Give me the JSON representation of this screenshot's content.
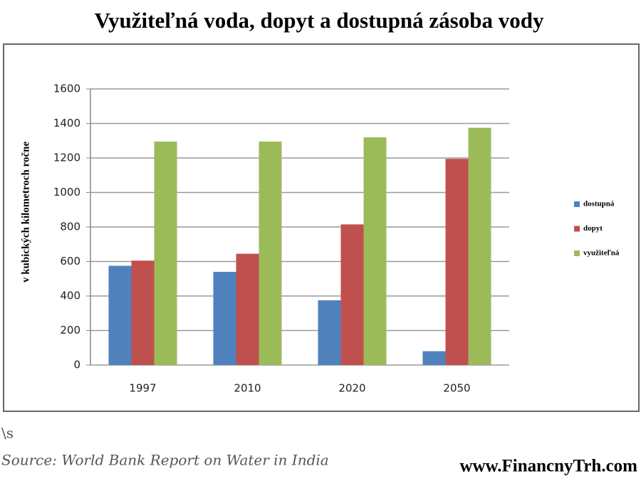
{
  "chart_data": {
    "type": "bar",
    "title": "Využiteľná voda, dopyt a dostupná zásoba vody",
    "y_label": "v kubických kilometroch ročne",
    "categories": [
      "1997",
      "2010",
      "2020",
      "2050"
    ],
    "series": [
      {
        "name": "dostupná",
        "color": "#4f81bd",
        "values": [
          575,
          540,
          375,
          80
        ]
      },
      {
        "name": "dopyt",
        "color": "#c0504d",
        "values": [
          605,
          645,
          815,
          1195
        ]
      },
      {
        "name": "využiteľná",
        "color": "#9bbb59",
        "values": [
          1295,
          1295,
          1320,
          1375
        ]
      }
    ],
    "ylim": [
      0,
      1600
    ],
    "yticks": [
      0,
      200,
      400,
      600,
      800,
      1000,
      1200,
      1400,
      1600
    ],
    "grid": true,
    "legend": "right",
    "note": "\\s",
    "source": "Source: World Bank Report on Water in India",
    "watermark": "www.FinancnyTrh.com"
  }
}
